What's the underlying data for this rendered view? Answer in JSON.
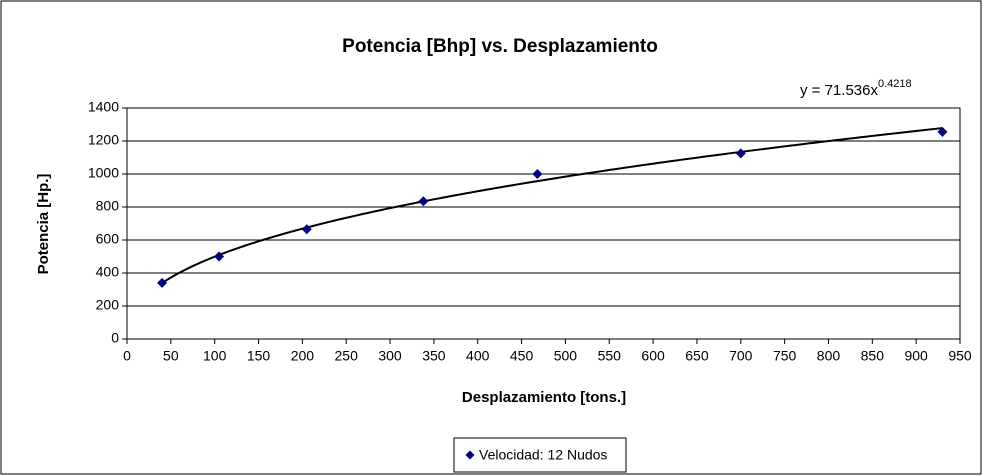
{
  "chart_data": {
    "type": "scatter",
    "title": "Potencia [Bhp]  vs. Desplazamiento",
    "x_label": "Desplazamiento [tons.]",
    "y_label": "Potencia [Hp.]",
    "series": [
      {
        "name": "Velocidad: 12 Nudos",
        "color": "#000080",
        "x": [
          40,
          105,
          205,
          338,
          468,
          700,
          930
        ],
        "values": [
          340,
          500,
          665,
          835,
          1000,
          1125,
          1255
        ]
      }
    ],
    "trendline": {
      "type": "power",
      "coefficient": 71.536,
      "exponent": 0.4218,
      "color": "#000000",
      "label": "y = 71.536x",
      "label_exponent": "0.4218"
    },
    "xlim": [
      0,
      950
    ],
    "xticks": [
      0,
      50,
      100,
      150,
      200,
      250,
      300,
      350,
      400,
      450,
      500,
      550,
      600,
      650,
      700,
      750,
      800,
      850,
      900,
      950
    ],
    "ylim": [
      0,
      1400
    ],
    "yticks": [
      0,
      200,
      400,
      600,
      800,
      1000,
      1200,
      1400
    ],
    "grid": true,
    "legend": "bottom"
  }
}
